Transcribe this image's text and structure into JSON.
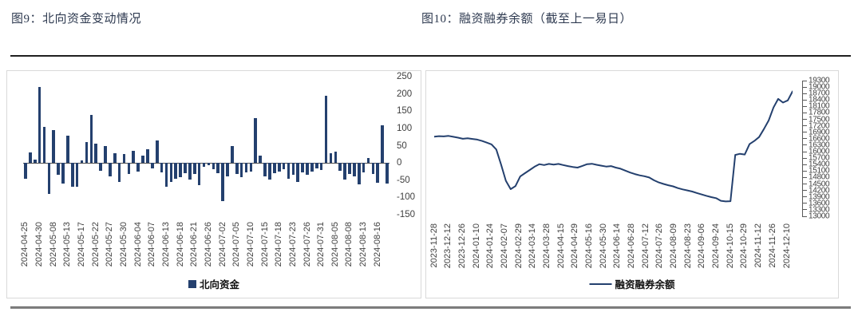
{
  "colors": {
    "series": "#24406E",
    "title_text": "#2E3A50",
    "axis_text": "#3F3F3F"
  },
  "chart_data": [
    {
      "type": "bar",
      "title": "图9：北向资金变动情况",
      "legend": "北向资金",
      "color": "#24406E",
      "ylim": [
        -150,
        250
      ],
      "yticks": [
        250,
        200,
        150,
        100,
        50,
        0,
        -50,
        -100,
        -150
      ],
      "grid": false,
      "legend_position": "bottom",
      "x_label_every": 3,
      "x_tick_labels": [
        "2024-04-25",
        "2024-04-30",
        "2024-05-08",
        "2024-05-13",
        "2024-05-17",
        "2024-05-22",
        "2024-05-27",
        "2024-05-30",
        "2024-06-04",
        "2024-06-07",
        "2024-06-13",
        "2024-06-18",
        "2024-06-21",
        "2024-06-26",
        "2024-07-02",
        "2024-07-05",
        "2024-07-10",
        "2024-07-15",
        "2024-07-18",
        "2024-07-23",
        "2024-07-26",
        "2024-07-31",
        "2024-08-05",
        "2024-08-08",
        "2024-08-13",
        "2024-08-16"
      ],
      "values": [
        -45,
        30,
        10,
        220,
        105,
        -90,
        95,
        -35,
        -60,
        80,
        -70,
        -70,
        8,
        60,
        140,
        55,
        -22,
        48,
        -40,
        28,
        -55,
        25,
        -32,
        35,
        -25,
        20,
        40,
        -15,
        65,
        -28,
        -70,
        -55,
        -45,
        -42,
        -30,
        -48,
        -32,
        -65,
        -12,
        -6,
        -18,
        -30,
        -110,
        -38,
        50,
        -32,
        -42,
        -28,
        -25,
        130,
        22,
        -38,
        -48,
        -30,
        -26,
        -18,
        -45,
        -35,
        -55,
        -28,
        -35,
        -25,
        -15,
        -20,
        195,
        28,
        32,
        -22,
        -48,
        -32,
        -38,
        -62,
        -28,
        15,
        -32,
        -58,
        110,
        -60
      ]
    },
    {
      "type": "line",
      "title": "图10：融资融券余额（截至上一易日）",
      "legend": "融资融券余额",
      "color": "#24406E",
      "ylim": [
        13000,
        19300
      ],
      "yticks": [
        19300,
        19000,
        18700,
        18400,
        18100,
        17800,
        17500,
        17200,
        16900,
        16600,
        16300,
        16000,
        15700,
        15400,
        15100,
        14800,
        14500,
        14200,
        13900,
        13600,
        13300,
        13000
      ],
      "grid": false,
      "legend_position": "bottom",
      "x_tick_labels": [
        "2023-11-28",
        "2023-12-12",
        "2023-12-26",
        "2024-01-10",
        "2024-01-24",
        "2024-02-07",
        "2024-02-29",
        "2024-03-14",
        "2024-03-28",
        "2024-04-15",
        "2024-04-29",
        "2024-05-16",
        "2024-05-30",
        "2024-06-14",
        "2024-06-28",
        "2024-07-12",
        "2024-07-26",
        "2024-08-09",
        "2024-08-23",
        "2024-09-06",
        "2024-09-24",
        "2024-10-15",
        "2024-10-29",
        "2024-11-12",
        "2024-11-26",
        "2024-12-10"
      ],
      "values": [
        16700,
        16720,
        16710,
        16730,
        16690,
        16650,
        16600,
        16620,
        16590,
        16560,
        16500,
        16420,
        16340,
        16100,
        15400,
        14650,
        14260,
        14400,
        14850,
        15000,
        15150,
        15300,
        15420,
        15380,
        15430,
        15400,
        15430,
        15380,
        15330,
        15290,
        15260,
        15340,
        15420,
        15440,
        15390,
        15350,
        15310,
        15330,
        15260,
        15210,
        15120,
        15030,
        14960,
        14900,
        14860,
        14800,
        14670,
        14570,
        14500,
        14440,
        14390,
        14310,
        14250,
        14200,
        14150,
        14080,
        14010,
        13950,
        13890,
        13840,
        13720,
        13690,
        13700,
        15850,
        15900,
        15870,
        16350,
        16500,
        16680,
        17050,
        17450,
        18050,
        18450,
        18280,
        18380,
        18800
      ]
    }
  ]
}
